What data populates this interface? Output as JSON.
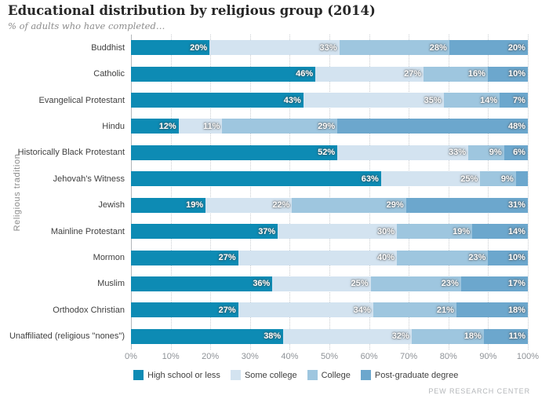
{
  "header": {
    "title": "Educational distribution by religious group (2014)",
    "subtitle": "% of adults who have completed…"
  },
  "chart_data": {
    "type": "bar",
    "stacked": true,
    "orientation": "horizontal",
    "title": "Educational distribution by religious group (2014)",
    "subtitle": "% of adults who have completed…",
    "ylabel": "Religious tradition",
    "xlabel": "",
    "xlim": [
      0,
      100
    ],
    "grid": "vertical-dotted",
    "legend_position": "bottom",
    "x_ticks": [
      "0%",
      "10%",
      "20%",
      "30%",
      "40%",
      "50%",
      "60%",
      "70%",
      "80%",
      "90%",
      "100%"
    ],
    "series_names": [
      "High school or less",
      "Some college",
      "College",
      "Post-graduate degree"
    ],
    "series_colors": [
      "#0d8bb4",
      "#d3e3f0",
      "#9ec6df",
      "#6ca7cd"
    ],
    "rows": [
      {
        "category": "Buddhist",
        "values": [
          20,
          33,
          28,
          20
        ],
        "labels": [
          "20%",
          "33%",
          "28%",
          "20%"
        ]
      },
      {
        "category": "Catholic",
        "values": [
          46,
          27,
          16,
          10
        ],
        "labels": [
          "46%",
          "27%",
          "16%",
          "10%"
        ]
      },
      {
        "category": "Evangelical Protestant",
        "values": [
          43,
          35,
          14,
          7
        ],
        "labels": [
          "43%",
          "35%",
          "14%",
          "7%"
        ]
      },
      {
        "category": "Hindu",
        "values": [
          12,
          11,
          29,
          48
        ],
        "labels": [
          "12%",
          "11%",
          "29%",
          "48%"
        ]
      },
      {
        "category": "Historically Black Protestant",
        "values": [
          52,
          33,
          9,
          6
        ],
        "labels": [
          "52%",
          "33%",
          "9%",
          "6%"
        ]
      },
      {
        "category": "Jehovah's Witness",
        "values": [
          63,
          25,
          9,
          3
        ],
        "labels": [
          "63%",
          "25%",
          "9%",
          ""
        ]
      },
      {
        "category": "Jewish",
        "values": [
          19,
          22,
          29,
          31
        ],
        "labels": [
          "19%",
          "22%",
          "29%",
          "31%"
        ]
      },
      {
        "category": "Mainline Protestant",
        "values": [
          37,
          30,
          19,
          14
        ],
        "labels": [
          "37%",
          "30%",
          "19%",
          "14%"
        ]
      },
      {
        "category": "Mormon",
        "values": [
          27,
          40,
          23,
          10
        ],
        "labels": [
          "27%",
          "40%",
          "23%",
          "10%"
        ]
      },
      {
        "category": "Muslim",
        "values": [
          36,
          25,
          23,
          17
        ],
        "labels": [
          "36%",
          "25%",
          "23%",
          "17%"
        ]
      },
      {
        "category": "Orthodox Christian",
        "values": [
          27,
          34,
          21,
          18
        ],
        "labels": [
          "27%",
          "34%",
          "21%",
          "18%"
        ]
      },
      {
        "category": "Unaffiliated (religious \"nones\")",
        "values": [
          38,
          32,
          18,
          11
        ],
        "labels": [
          "38%",
          "32%",
          "18%",
          "11%"
        ]
      }
    ]
  },
  "legend": {
    "items": [
      {
        "label": "High school or less",
        "color": "#0d8bb4"
      },
      {
        "label": "Some college",
        "color": "#d3e3f0"
      },
      {
        "label": "College",
        "color": "#9ec6df"
      },
      {
        "label": "Post-graduate degree",
        "color": "#6ca7cd"
      }
    ]
  },
  "footer": {
    "source": "PEW RESEARCH CENTER"
  }
}
